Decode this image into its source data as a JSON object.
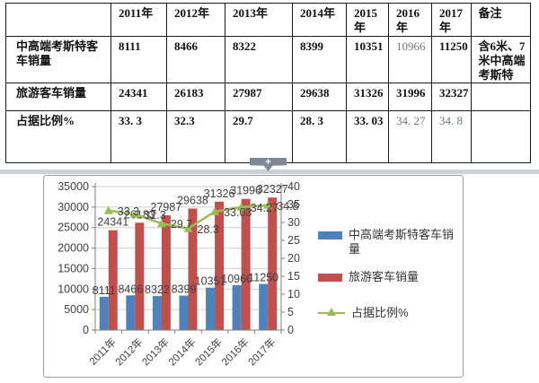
{
  "table": {
    "header": [
      "",
      "2011年",
      "2012年",
      "2013年",
      "2014年",
      "2015年",
      "2016年",
      "2017年",
      "备注"
    ],
    "rows": [
      {
        "label": "中高端考斯特客车销量",
        "values": [
          "8111",
          "8466",
          "8322",
          "8399",
          "10351",
          "10966",
          "11250"
        ],
        "note": "含6米、7米中高端考斯特"
      },
      {
        "label": "旅游客车销量",
        "values": [
          "24341",
          "26183",
          "27987",
          "29638",
          "31326",
          "31996",
          "32327"
        ],
        "note": ""
      },
      {
        "label": "占据比例%",
        "values": [
          "33. 3",
          "32.3",
          "29.7",
          "28. 3",
          "33. 03",
          "34. 27",
          "34. 8"
        ],
        "note": ""
      }
    ]
  },
  "divider": {
    "plus_label": "+"
  },
  "chart_data": {
    "type": "bar",
    "categories": [
      "2011年",
      "2012年",
      "2013年",
      "2014年",
      "2015年",
      "2016年",
      "2017年"
    ],
    "series": [
      {
        "name": "中高端考斯特客车销量",
        "type": "bar",
        "axis": "left",
        "color": "#4F81BD",
        "values": [
          8111,
          8466,
          8322,
          8399,
          10351,
          10966,
          11250
        ],
        "labels": [
          "8111",
          "8466",
          "8322",
          "8399",
          "10351",
          "10966",
          "11250"
        ]
      },
      {
        "name": "旅游客车销量",
        "type": "bar",
        "axis": "left",
        "color": "#C0504D",
        "values": [
          24341,
          26183,
          27987,
          29638,
          31326,
          31996,
          32327
        ],
        "labels": [
          "24341",
          "26183",
          "27987",
          "29638",
          "31326",
          "31996",
          "32327"
        ]
      },
      {
        "name": "占据比例%",
        "type": "line",
        "axis": "right",
        "color": "#9BBB59",
        "values": [
          33.3,
          32.3,
          29.7,
          28.3,
          33.03,
          34.27,
          34.8
        ],
        "labels": [
          "33.3",
          "32.3",
          "29.7",
          "28.3",
          "33.03",
          "34.27",
          "34.8"
        ]
      }
    ],
    "left_axis": {
      "min": 0,
      "max": 35000,
      "step": 5000,
      "ticks": [
        "0",
        "5000",
        "10000",
        "15000",
        "20000",
        "25000",
        "30000",
        "35000"
      ]
    },
    "right_axis": {
      "min": 0,
      "max": 40,
      "step": 5,
      "ticks": [
        "0",
        "5",
        "10",
        "15",
        "20",
        "25",
        "30",
        "35",
        "40"
      ]
    },
    "legend_position": "right",
    "grid": true,
    "colors": {
      "grid": "#cfcfcf",
      "axis": "#7f7f7f",
      "text": "#3f3f3f"
    }
  }
}
